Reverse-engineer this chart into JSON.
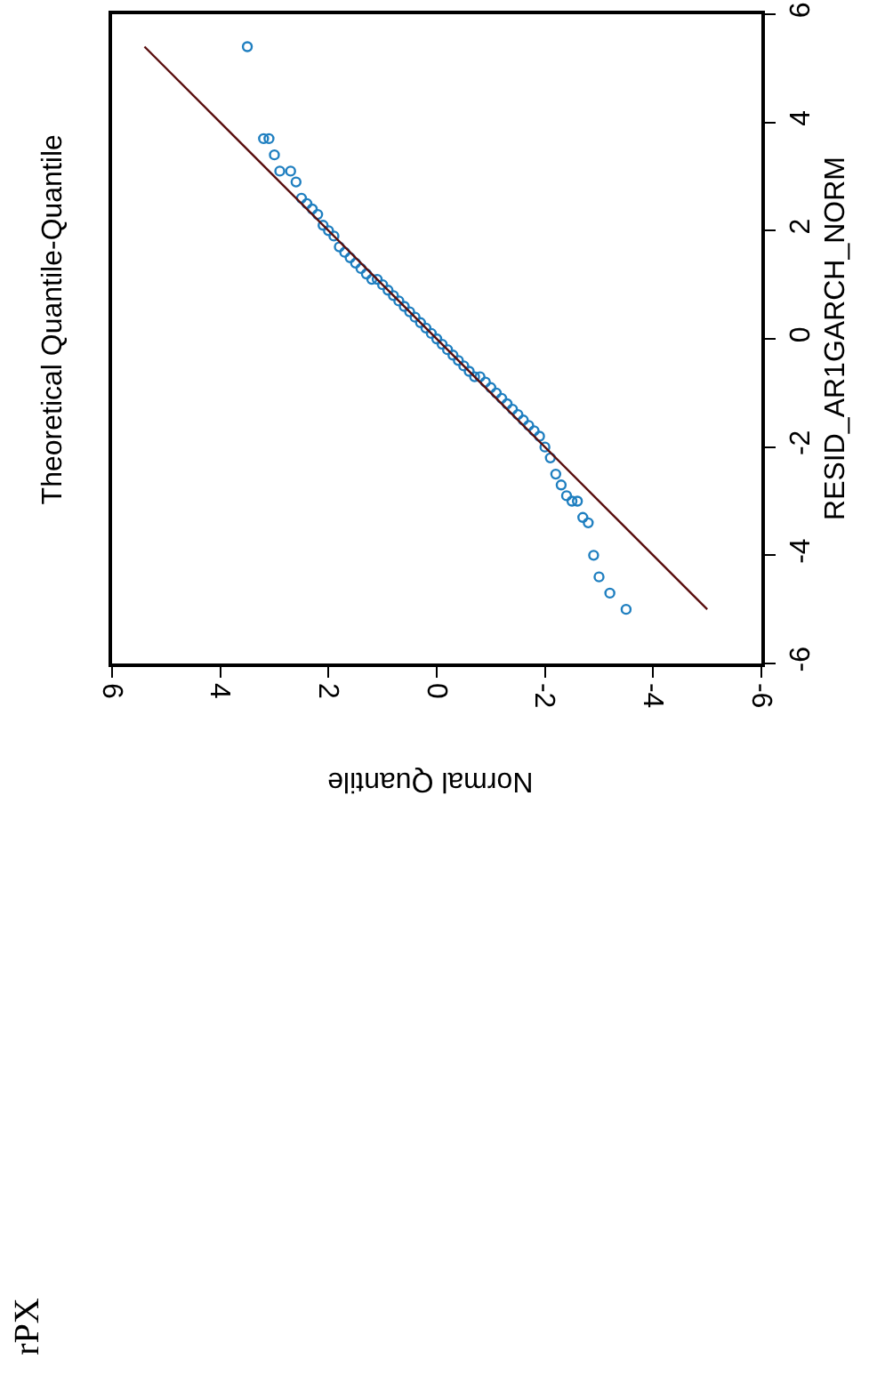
{
  "chart_data": {
    "type": "scatter",
    "title": "Theoretical Quantile-Quantile",
    "xlabel": "Normal Quantile",
    "ylabel": "RESID_AR1GARCH_NORM",
    "xlim": [
      6,
      -6
    ],
    "xticks": [
      6,
      4,
      2,
      0,
      -2,
      -4,
      -6
    ],
    "ylim": [
      -6,
      6
    ],
    "yticks": [
      -6,
      -4,
      -2,
      0,
      2,
      4,
      6
    ],
    "annotations": [
      "rPX"
    ],
    "series": [
      {
        "color": "#1f7fc0",
        "marker": "circle",
        "x": [
          3.5,
          3.2,
          3.1,
          3.0,
          2.9,
          2.7,
          2.6,
          2.5,
          2.4,
          2.3,
          2.2,
          2.1,
          2.0,
          1.9,
          1.8,
          1.7,
          1.6,
          1.5,
          1.4,
          1.3,
          1.2,
          1.1,
          1.0,
          0.9,
          0.8,
          0.7,
          0.6,
          0.5,
          0.4,
          0.3,
          0.2,
          0.1,
          0.0,
          -0.1,
          -0.2,
          -0.3,
          -0.4,
          -0.5,
          -0.6,
          -0.7,
          -0.8,
          -0.9,
          -1.0,
          -1.1,
          -1.2,
          -1.3,
          -1.4,
          -1.5,
          -1.6,
          -1.7,
          -1.8,
          -1.9,
          -2.0,
          -2.1,
          -2.2,
          -2.3,
          -2.4,
          -2.5,
          -2.6,
          -2.7,
          -2.8,
          -2.9,
          -3.0,
          -3.2,
          -3.5
        ],
        "values": [
          5.4,
          3.7,
          3.7,
          3.4,
          3.1,
          3.1,
          2.9,
          2.6,
          2.5,
          2.4,
          2.3,
          2.1,
          2.0,
          1.9,
          1.7,
          1.6,
          1.5,
          1.4,
          1.3,
          1.2,
          1.1,
          1.1,
          1.0,
          0.9,
          0.8,
          0.7,
          0.6,
          0.5,
          0.4,
          0.3,
          0.2,
          0.1,
          0.0,
          -0.1,
          -0.2,
          -0.3,
          -0.4,
          -0.5,
          -0.6,
          -0.7,
          -0.7,
          -0.8,
          -0.9,
          -1.0,
          -1.1,
          -1.2,
          -1.3,
          -1.4,
          -1.5,
          -1.6,
          -1.7,
          -1.8,
          -2.0,
          -2.2,
          -2.5,
          -2.7,
          -2.9,
          -3.0,
          -3.0,
          -3.3,
          -3.4,
          -4.0,
          -4.4,
          -4.7,
          -5.0
        ]
      },
      {
        "type": "line",
        "color": "#5a0f0f",
        "x": [
          5.4,
          -5.0
        ],
        "values": [
          5.4,
          -5.0
        ]
      }
    ]
  }
}
